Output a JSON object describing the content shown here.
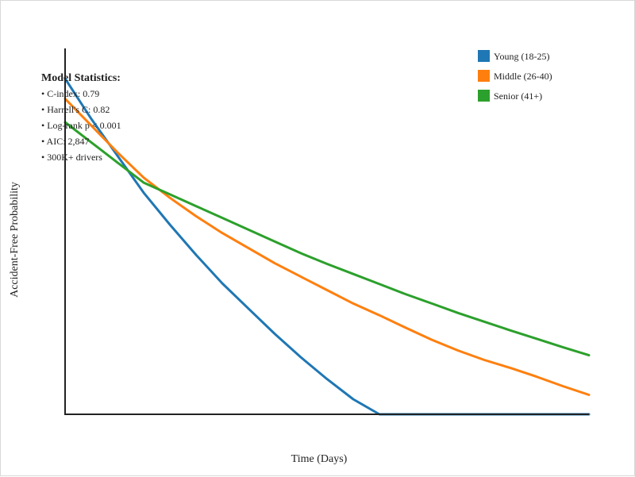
{
  "chart_data": {
    "type": "line",
    "title": "",
    "xlabel": "Time (Days)",
    "ylabel": "Accident-Free Probability",
    "xlim": [
      0,
      100
    ],
    "ylim": [
      0,
      1
    ],
    "grid": false,
    "legend_placement": "top-right",
    "x": [
      0,
      5,
      10,
      15,
      20,
      25,
      30,
      35,
      40,
      45,
      50,
      55,
      60,
      65,
      70,
      75,
      80,
      85,
      90,
      95,
      100
    ],
    "series": [
      {
        "name": "Young (18-25)",
        "color": "#1f77b4",
        "values": [
          1.0,
          0.88,
          0.77,
          0.66,
          0.565,
          0.475,
          0.39,
          0.315,
          0.24,
          0.17,
          0.105,
          0.045,
          0.0,
          0.0,
          0.0,
          0.0,
          0.0,
          0.0,
          0.0,
          0.0,
          0.0
        ]
      },
      {
        "name": "Middle (26-40)",
        "color": "#ff7f0e",
        "values": [
          0.94,
          0.86,
          0.78,
          0.705,
          0.645,
          0.59,
          0.54,
          0.495,
          0.45,
          0.41,
          0.37,
          0.33,
          0.295,
          0.258,
          0.222,
          0.19,
          0.162,
          0.138,
          0.112,
          0.084,
          0.058
        ]
      },
      {
        "name": "Senior (41+)",
        "color": "#2ca02c",
        "values": [
          0.87,
          0.81,
          0.75,
          0.69,
          0.655,
          0.62,
          0.585,
          0.55,
          0.515,
          0.48,
          0.448,
          0.418,
          0.388,
          0.358,
          0.33,
          0.302,
          0.276,
          0.25,
          0.225,
          0.2,
          0.176
        ]
      }
    ]
  },
  "stats": {
    "title": "Model Statistics:",
    "lines": [
      "• C-index: 0.79",
      "• Harrell's C: 0.82",
      "• Log-rank p < 0.001",
      "• AIC: 2,847",
      "• 300K+ drivers"
    ]
  }
}
